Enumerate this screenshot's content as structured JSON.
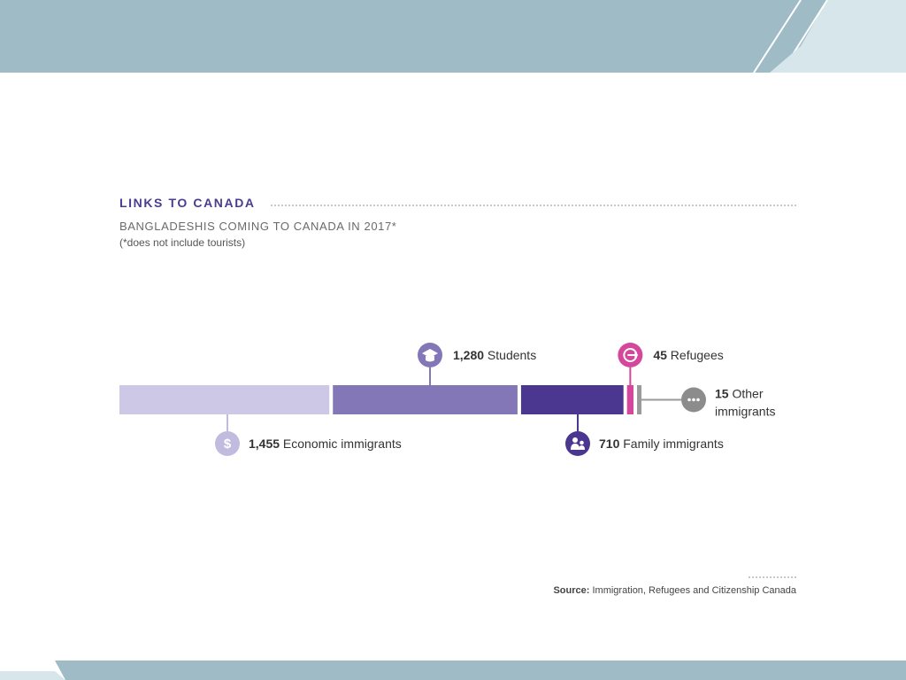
{
  "header": {
    "title": "LINKS TO CANADA",
    "subtitle": "BANGLADESHIS COMING TO CANADA IN 2017*",
    "note": "(*does not include tourists)"
  },
  "source": {
    "label": "Source:",
    "text": "Immigration, Refugees and Citizenship Canada"
  },
  "colors": {
    "banner": "#9fbcc6",
    "banner_light": "#d6e6eb"
  },
  "chart_data": {
    "type": "bar",
    "orientation": "horizontal-stacked",
    "total_unit": "people",
    "series": [
      {
        "value": 1455,
        "value_label": "1,455",
        "label": "Economic immigrants",
        "icon": "dollar-icon",
        "color": "#cdc8e6",
        "icon_color": "#c2bbe0",
        "callout": "below"
      },
      {
        "value": 1280,
        "value_label": "1,280",
        "label": "Students",
        "icon": "graduation-cap-icon",
        "color": "#8477b8",
        "icon_color": "#8477b8",
        "callout": "above"
      },
      {
        "value": 710,
        "value_label": "710",
        "label": "Family immigrants",
        "icon": "family-icon",
        "color": "#4b3690",
        "icon_color": "#4b3690",
        "callout": "below"
      },
      {
        "value": 45,
        "value_label": "45",
        "label": "Refugees",
        "icon": "exit-arrow-icon",
        "color": "#d5479a",
        "icon_color": "#d5479a",
        "callout": "above"
      },
      {
        "value": 15,
        "value_label": "15",
        "label": "Other",
        "label2": "immigrants",
        "icon": "ellipsis-icon",
        "color": "#9a9a9a",
        "icon_color": "#8c8c8c",
        "callout": "right"
      }
    ]
  }
}
